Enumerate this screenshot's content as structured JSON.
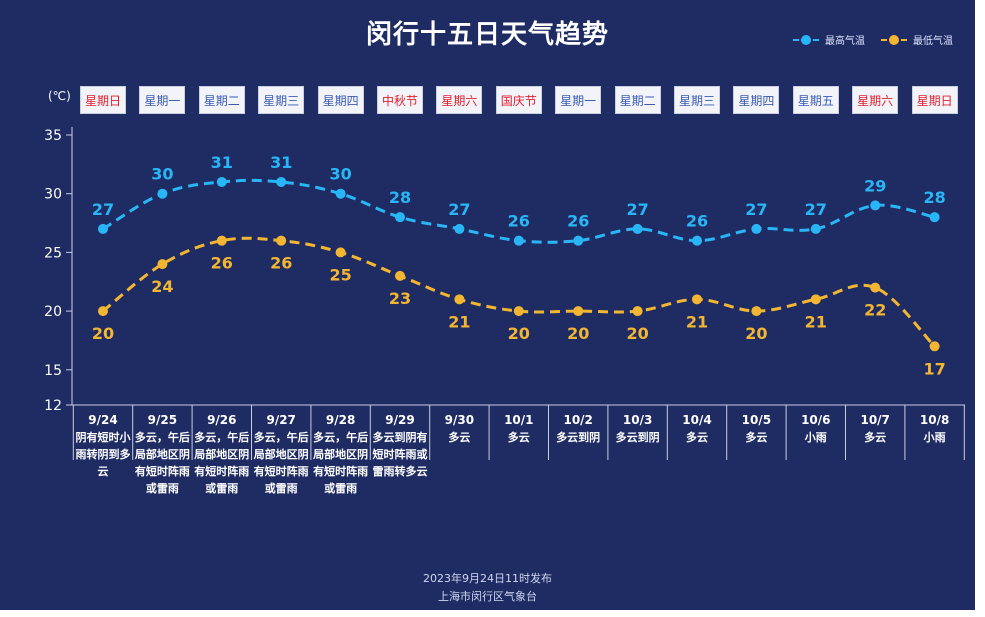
{
  "title": "闵行十五日天气趋势",
  "legend": [
    {
      "label": "最高气温",
      "color": "#29b6f6"
    },
    {
      "label": "最低气温",
      "color": "#f2b632"
    }
  ],
  "unit": "(℃)",
  "weekdays": [
    {
      "label": "星期日",
      "color": "red"
    },
    {
      "label": "星期一",
      "color": "blue"
    },
    {
      "label": "星期二",
      "color": "blue"
    },
    {
      "label": "星期三",
      "color": "blue"
    },
    {
      "label": "星期四",
      "color": "blue"
    },
    {
      "label": "中秋节",
      "color": "red"
    },
    {
      "label": "星期六",
      "color": "red"
    },
    {
      "label": "国庆节",
      "color": "red"
    },
    {
      "label": "星期一",
      "color": "blue"
    },
    {
      "label": "星期二",
      "color": "blue"
    },
    {
      "label": "星期三",
      "color": "blue"
    },
    {
      "label": "星期四",
      "color": "blue"
    },
    {
      "label": "星期五",
      "color": "blue"
    },
    {
      "label": "星期六",
      "color": "red"
    },
    {
      "label": "星期日",
      "color": "red"
    }
  ],
  "days": [
    {
      "date": "9/24",
      "weather": "阴有短时小雨转阴到多云"
    },
    {
      "date": "9/25",
      "weather": "多云，午后局部地区阴有短时阵雨或雷雨"
    },
    {
      "date": "9/26",
      "weather": "多云，午后局部地区阴有短时阵雨或雷雨"
    },
    {
      "date": "9/27",
      "weather": "多云，午后局部地区阴有短时阵雨或雷雨"
    },
    {
      "date": "9/28",
      "weather": "多云，午后局部地区阴有短时阵雨或雷雨"
    },
    {
      "date": "9/29",
      "weather": "多云到阴有短时阵雨或雷雨转多云"
    },
    {
      "date": "9/30",
      "weather": "多云"
    },
    {
      "date": "10/1",
      "weather": "多云"
    },
    {
      "date": "10/2",
      "weather": "多云到阴"
    },
    {
      "date": "10/3",
      "weather": "多云到阴"
    },
    {
      "date": "10/4",
      "weather": "多云"
    },
    {
      "date": "10/5",
      "weather": "多云"
    },
    {
      "date": "10/6",
      "weather": "小雨"
    },
    {
      "date": "10/7",
      "weather": "多云"
    },
    {
      "date": "10/8",
      "weather": "小雨"
    }
  ],
  "chart_data": {
    "type": "line",
    "x": [
      "9/24",
      "9/25",
      "9/26",
      "9/27",
      "9/28",
      "9/29",
      "9/30",
      "10/1",
      "10/2",
      "10/3",
      "10/4",
      "10/5",
      "10/6",
      "10/7",
      "10/8"
    ],
    "series": [
      {
        "name": "最高气温",
        "color": "#29b6f6",
        "values": [
          27,
          30,
          31,
          31,
          30,
          28,
          27,
          26,
          26,
          27,
          26,
          27,
          27,
          29,
          28
        ]
      },
      {
        "name": "最低气温",
        "color": "#f2b632",
        "values": [
          20,
          24,
          26,
          26,
          25,
          23,
          21,
          20,
          20,
          20,
          21,
          20,
          21,
          22,
          17
        ]
      }
    ],
    "yticks": [
      12,
      15,
      20,
      25,
      30,
      35
    ],
    "ylim": [
      12,
      35
    ],
    "line_style": "dashed"
  },
  "footer": {
    "issued": "2023年9月24日11时发布",
    "org": "上海市闵行区气象台"
  }
}
